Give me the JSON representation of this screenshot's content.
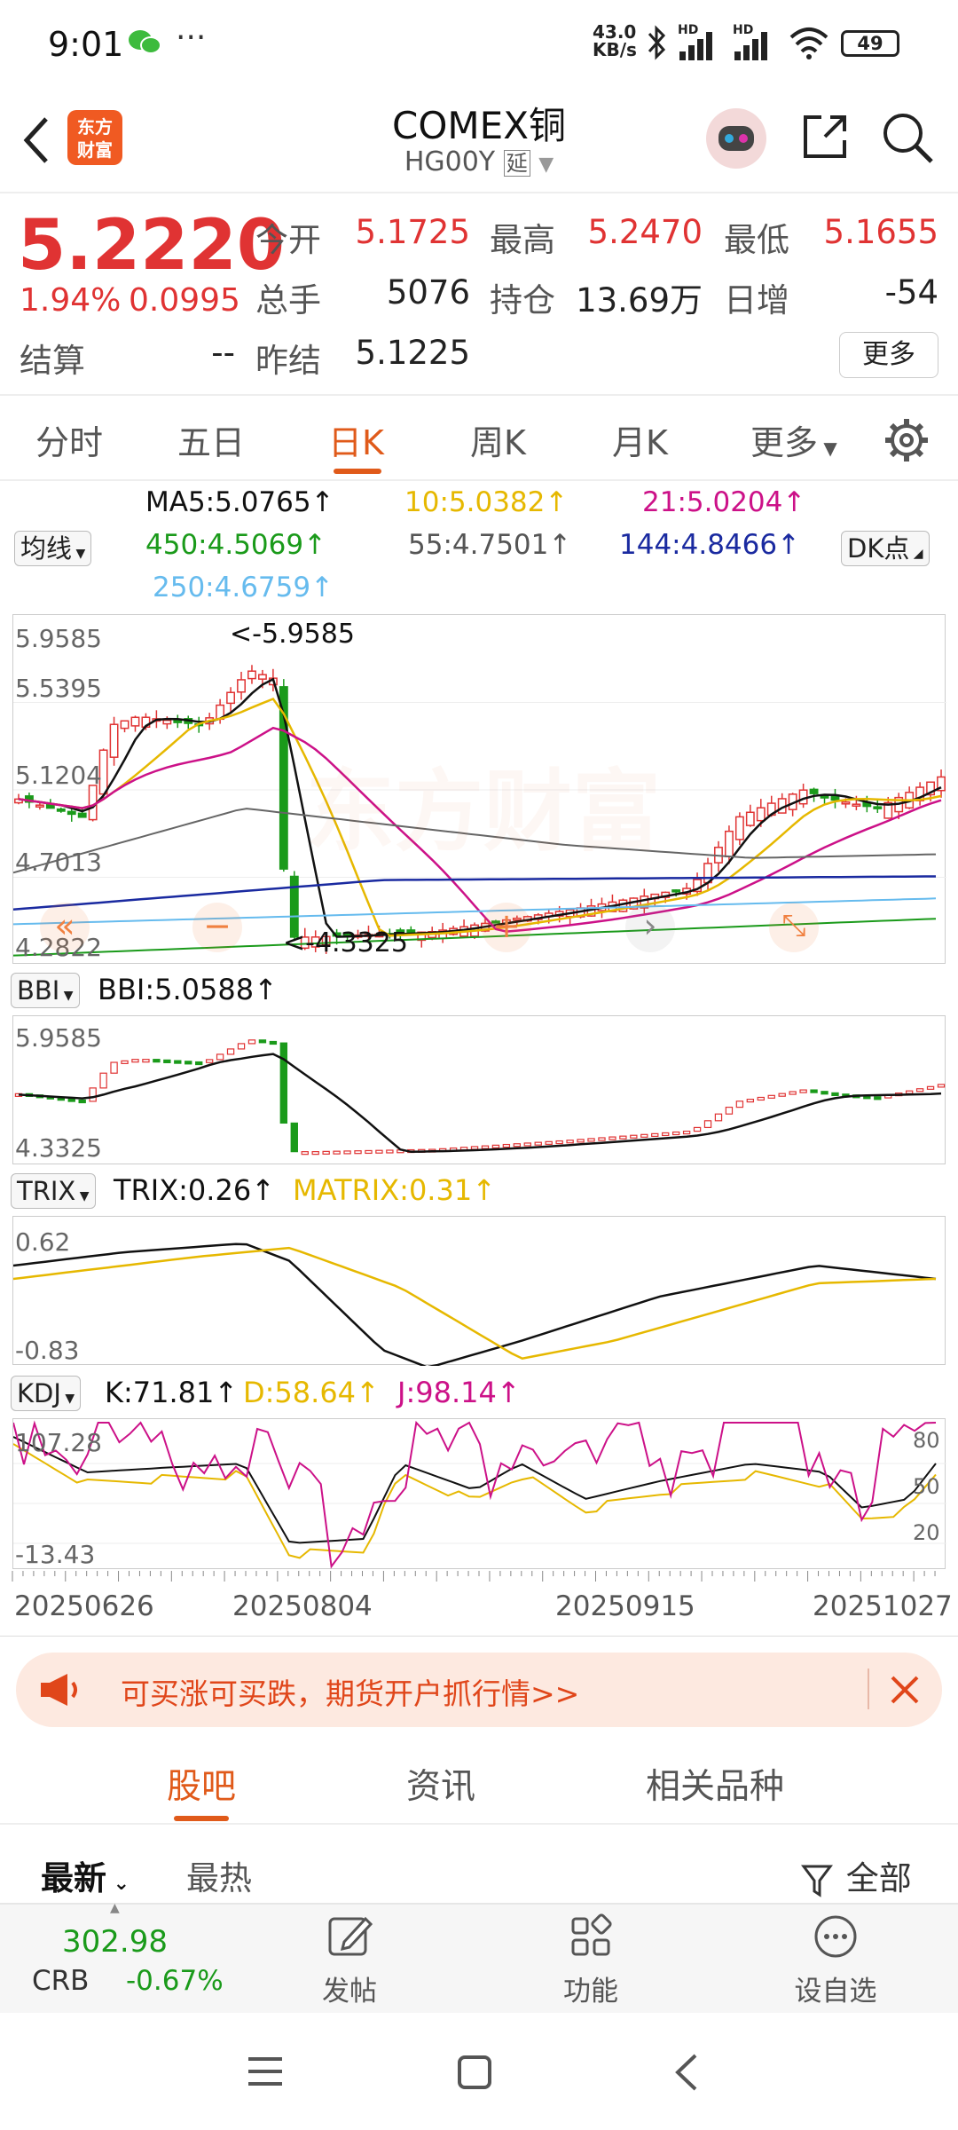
{
  "status": {
    "time": "9:01",
    "net_speed": "43.0",
    "net_unit": "KB/s",
    "hd1": "HD",
    "hd2": "HD",
    "battery": "49"
  },
  "header": {
    "title": "COMEX铜",
    "code": "HG00Y",
    "delay_badge": "延",
    "logo_l1": "东方",
    "logo_l2": "财富"
  },
  "quote": {
    "price": "5.2220",
    "pct": "1.94%",
    "change": "0.0995",
    "labels": {
      "open": "今开",
      "high": "最高",
      "low": "最低",
      "volume": "总手",
      "position": "持仓",
      "daily_inc": "日增",
      "settle": "结算",
      "prev_settle": "昨结"
    },
    "values": {
      "open": "5.1725",
      "high": "5.2470",
      "low": "5.1655",
      "volume": "5076",
      "position": "13.69万",
      "daily_inc": "-54",
      "settle": "--",
      "prev_settle": "5.1225"
    },
    "more": "更多"
  },
  "tabs": [
    "分时",
    "五日",
    "日K",
    "周K",
    "月K",
    "更多"
  ],
  "ma": {
    "selector": "均线",
    "ma5": "MA5:5.0765↑",
    "ma10": "10:5.0382↑",
    "ma21": "21:5.0204↑",
    "ma450": "450:4.5069↑",
    "ma55": "55:4.7501↑",
    "ma144": "144:4.8466↑",
    "ma250": "250:4.6759↑",
    "dk": "DK点"
  },
  "main_chart": {
    "y_labels": [
      "5.9585",
      "5.5395",
      "5.1204",
      "4.7013",
      "4.2822"
    ],
    "max_mark": "<-5.9585",
    "min_mark": "<-4.3325",
    "watermark": "东方财富"
  },
  "bbi": {
    "selector": "BBI",
    "value": "BBI:5.0588↑",
    "y_top": "5.9585",
    "y_bot": "4.3325"
  },
  "trix": {
    "selector": "TRIX",
    "value": "TRIX:0.26↑",
    "matrix": "MATRIX:0.31↑",
    "y_top": "0.62",
    "y_bot": "-0.83"
  },
  "kdj": {
    "selector": "KDJ",
    "k": "K:71.81↑",
    "d": "D:58.64↑",
    "j": "J:98.14↑",
    "y_top": "107.28",
    "y_bot": "-13.43",
    "r80": "80",
    "r50": "50",
    "r20": "20"
  },
  "dates": [
    "20250626",
    "20250804",
    "20250915",
    "20251027"
  ],
  "ad": {
    "text": "可买涨可买跌，期货开户抓行情>>"
  },
  "subtabs": [
    "股吧",
    "资讯",
    "相关品种"
  ],
  "sort": {
    "latest": "最新",
    "hot": "最热",
    "filter": "全部"
  },
  "bottom": {
    "crb_value": "302.98",
    "crb_label": "CRB",
    "crb_change": "-0.67%",
    "post": "发帖",
    "func": "功能",
    "watch": "设自选"
  },
  "colors": {
    "up": "#e03333",
    "down": "#1a9a1a",
    "ma5": "#111111",
    "ma10": "#e6b800",
    "ma21": "#cc1188",
    "ma55": "#666666",
    "ma144": "#1a2aa0",
    "ma250": "#66bbee",
    "ma450": "#1a9a1a",
    "accent": "#e05a1a"
  }
}
